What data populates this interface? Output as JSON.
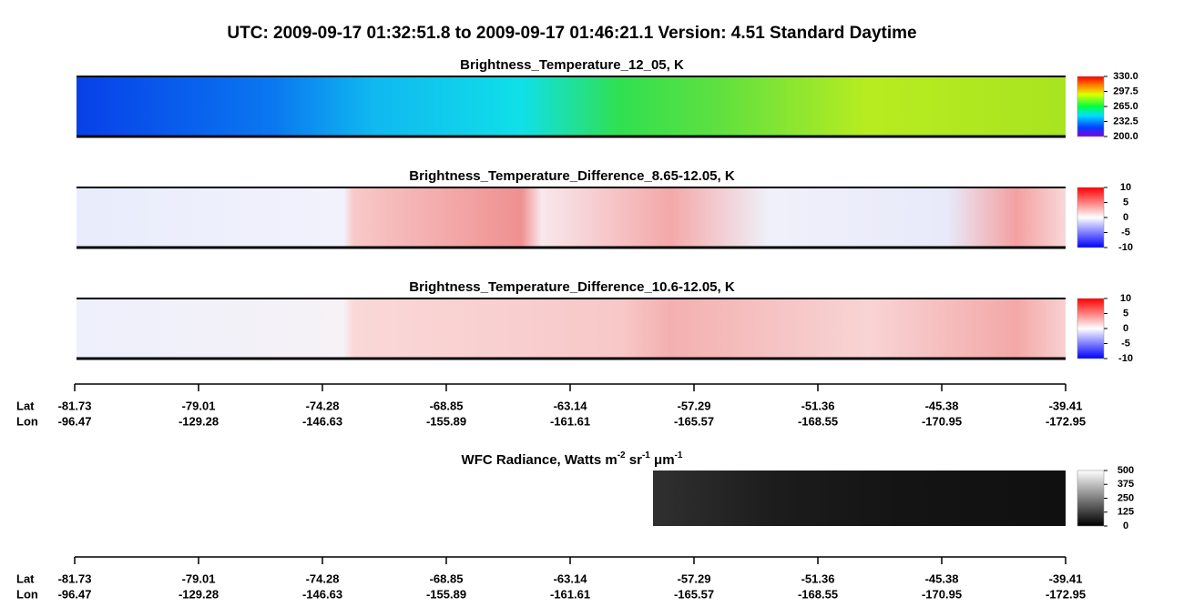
{
  "title": "UTC:  2009-09-17   01:32:51.8  to  2009-09-17   01:46:21.1    Version: 4.51  Standard Daytime",
  "panels": [
    {
      "title": "Brightness_Temperature_12_05, K",
      "colorbar": {
        "lim": [
          200,
          330
        ],
        "ticks": [
          {
            "value": 330,
            "label": "330.0"
          },
          {
            "value": 297.5,
            "label": "297.5"
          },
          {
            "value": 265,
            "label": "265.0"
          },
          {
            "value": 232.5,
            "label": "232.5"
          },
          {
            "value": 200,
            "label": "200.0"
          }
        ]
      }
    },
    {
      "title": "Brightness_Temperature_Difference_8.65-12.05, K",
      "colorbar": {
        "lim": [
          -10,
          10
        ],
        "ticks": [
          10,
          5,
          0,
          -5,
          -10
        ]
      }
    },
    {
      "title": "Brightness_Temperature_Difference_10.6-12.05, K",
      "colorbar": {
        "lim": [
          -10,
          10
        ],
        "ticks": [
          10,
          5,
          0,
          -5,
          -10
        ]
      }
    },
    {
      "title_parts": [
        "WFC Radiance, Watts m",
        "-2",
        " sr",
        "-1",
        " μm",
        "-1"
      ],
      "colorbar": {
        "lim": [
          0,
          500
        ],
        "ticks": [
          500,
          375,
          250,
          125,
          0
        ]
      }
    }
  ],
  "axes": [
    {
      "lat_label": "Lat",
      "lon_label": "Lon",
      "lat": [
        "-81.73",
        "-79.01",
        "-74.28",
        "-68.85",
        "-63.14",
        "-57.29",
        "-51.36",
        "-45.38",
        "-39.41"
      ],
      "lon": [
        "-96.47",
        "-129.28",
        "-146.63",
        "-155.89",
        "-161.61",
        "-165.57",
        "-168.55",
        "-170.95",
        "-172.95"
      ]
    },
    {
      "lat_label": "Lat",
      "lon_label": "Lon",
      "lat": [
        "-81.73",
        "-79.01",
        "-74.28",
        "-68.85",
        "-63.14",
        "-57.29",
        "-51.36",
        "-45.38",
        "-39.41"
      ],
      "lon": [
        "-96.47",
        "-129.28",
        "-146.63",
        "-155.89",
        "-161.61",
        "-165.57",
        "-168.55",
        "-170.95",
        "-172.95"
      ]
    }
  ]
}
